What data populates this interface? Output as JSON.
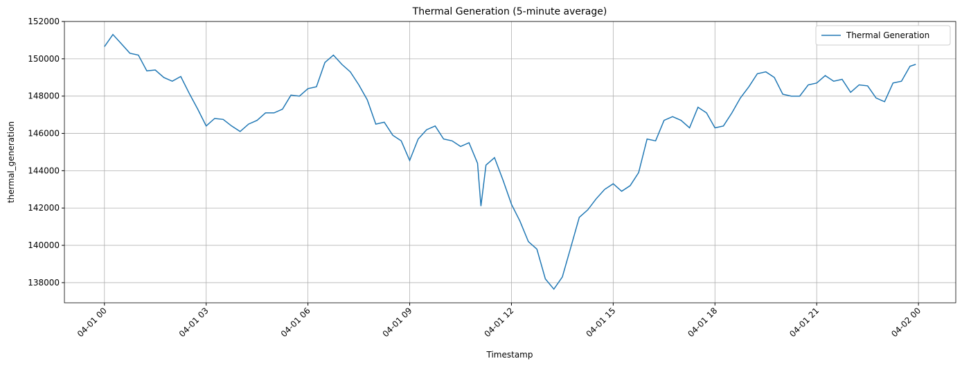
{
  "chart_data": {
    "type": "line",
    "title": "Thermal Generation (5-minute average)",
    "xlabel": "Timestamp",
    "ylabel": "thermal_generation",
    "x": [
      0,
      0.25,
      0.5,
      0.75,
      1,
      1.25,
      1.5,
      1.75,
      2,
      2.25,
      2.5,
      2.75,
      3,
      3.25,
      3.5,
      3.75,
      4,
      4.25,
      4.5,
      4.75,
      5,
      5.25,
      5.5,
      5.75,
      6,
      6.25,
      6.5,
      6.75,
      7,
      7.25,
      7.5,
      7.75,
      8,
      8.25,
      8.5,
      8.75,
      9,
      9.25,
      9.5,
      9.75,
      10,
      10.25,
      10.5,
      10.75,
      11,
      11.1,
      11.25,
      11.5,
      11.75,
      12,
      12.25,
      12.5,
      12.75,
      13,
      13.25,
      13.5,
      13.75,
      14,
      14.25,
      14.5,
      14.75,
      15,
      15.25,
      15.5,
      15.75,
      16,
      16.25,
      16.5,
      16.75,
      17,
      17.25,
      17.5,
      17.75,
      18,
      18.25,
      18.5,
      18.75,
      19,
      19.25,
      19.5,
      19.75,
      20,
      20.25,
      20.5,
      20.75,
      21,
      21.25,
      21.5,
      21.75,
      22,
      22.25,
      22.5,
      22.75,
      23,
      23.25,
      23.5,
      23.75,
      23.92
    ],
    "series": [
      {
        "name": "Thermal Generation",
        "color": "#1f77b4",
        "values": [
          150650,
          151300,
          150800,
          150300,
          150200,
          149350,
          149400,
          149000,
          148800,
          149050,
          148150,
          147300,
          146400,
          146800,
          146750,
          146400,
          146100,
          146500,
          146700,
          147100,
          147100,
          147300,
          148050,
          148000,
          148400,
          148500,
          149800,
          150200,
          149700,
          149300,
          148600,
          147800,
          146500,
          146600,
          145900,
          145600,
          144550,
          145700,
          146200,
          146400,
          145700,
          145600,
          145300,
          145500,
          144400,
          142100,
          144300,
          144700,
          143500,
          142200,
          141300,
          140200,
          139800,
          138200,
          137650,
          138300,
          139900,
          141500,
          141900,
          142500,
          143000,
          143300,
          142900,
          143200,
          143900,
          145700,
          145600,
          146700,
          146900,
          146700,
          146300,
          147400,
          147100,
          146300,
          146400,
          147100,
          147900,
          148500,
          149200,
          149300,
          149000,
          148100,
          148000,
          148000,
          148600,
          148700,
          149100,
          148800,
          148900,
          148200,
          148600,
          148550,
          147900,
          147700,
          148700,
          148800,
          149600,
          149700
        ]
      }
    ],
    "xlim": [
      -1.18,
      25.1
    ],
    "xticks": [
      {
        "value": 0,
        "label": "04-01 00"
      },
      {
        "value": 3,
        "label": "04-01 03"
      },
      {
        "value": 6,
        "label": "04-01 06"
      },
      {
        "value": 9,
        "label": "04-01 09"
      },
      {
        "value": 12,
        "label": "04-01 12"
      },
      {
        "value": 15,
        "label": "04-01 15"
      },
      {
        "value": 18,
        "label": "04-01 18"
      },
      {
        "value": 21,
        "label": "04-01 21"
      },
      {
        "value": 24,
        "label": "04-02 00"
      }
    ],
    "ylim": [
      136920,
      152000
    ],
    "yticks": [
      138000,
      140000,
      142000,
      144000,
      146000,
      148000,
      150000,
      152000
    ],
    "grid": true,
    "legend": "upper right"
  }
}
